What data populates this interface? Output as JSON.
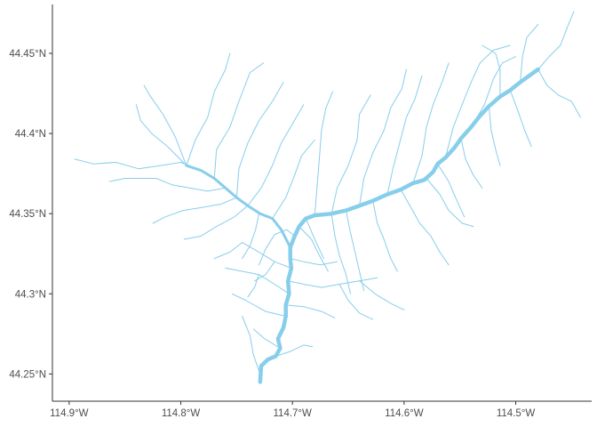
{
  "chart_data": {
    "type": "map",
    "title": "",
    "xlabel": "",
    "ylabel": "",
    "line_color": "#87CEEB",
    "xlim": [
      -114.915,
      -114.432
    ],
    "ylim": [
      44.233,
      44.4805
    ],
    "x_ticks": [
      {
        "value": -114.9,
        "label": "114.9°W"
      },
      {
        "value": -114.8,
        "label": "114.8°W"
      },
      {
        "value": -114.7,
        "label": "114.7°W"
      },
      {
        "value": -114.6,
        "label": "114.6°W"
      },
      {
        "value": -114.5,
        "label": "114.5°W"
      }
    ],
    "y_ticks": [
      {
        "value": 44.25,
        "label": "44.25°N"
      },
      {
        "value": 44.3,
        "label": "44.3°N"
      },
      {
        "value": 44.35,
        "label": "44.35°N"
      },
      {
        "value": 44.4,
        "label": "44.4°N"
      },
      {
        "value": 44.45,
        "label": "44.45°N"
      }
    ],
    "main_stem": [
      [
        -114.729,
        44.245
      ],
      [
        -114.728,
        44.255
      ],
      [
        -114.722,
        44.259
      ],
      [
        -114.715,
        44.261
      ],
      [
        -114.711,
        44.266
      ],
      [
        -114.713,
        44.272
      ],
      [
        -114.708,
        44.279
      ],
      [
        -114.706,
        44.286
      ],
      [
        -114.706,
        44.293
      ],
      [
        -114.703,
        44.3
      ],
      [
        -114.704,
        44.308
      ],
      [
        -114.701,
        44.316
      ],
      [
        -114.702,
        44.322
      ],
      [
        -114.702,
        44.329
      ],
      [
        -114.698,
        44.336
      ],
      [
        -114.694,
        44.342
      ],
      [
        -114.688,
        44.347
      ],
      [
        -114.68,
        44.349
      ],
      [
        -114.665,
        44.35
      ],
      [
        -114.652,
        44.352
      ],
      [
        -114.64,
        44.355
      ],
      [
        -114.628,
        44.358
      ],
      [
        -114.615,
        44.362
      ],
      [
        -114.603,
        44.365
      ],
      [
        -114.592,
        44.369
      ],
      [
        -114.582,
        44.371
      ],
      [
        -114.574,
        44.376
      ],
      [
        -114.57,
        44.381
      ],
      [
        -114.563,
        44.385
      ],
      [
        -114.555,
        44.391
      ],
      [
        -114.549,
        44.397
      ],
      [
        -114.54,
        44.404
      ],
      [
        -114.532,
        44.411
      ],
      [
        -114.524,
        44.417
      ],
      [
        -114.514,
        44.423
      ],
      [
        -114.505,
        44.427
      ],
      [
        -114.496,
        44.432
      ],
      [
        -114.488,
        44.436
      ],
      [
        -114.48,
        44.44
      ]
    ],
    "major_tributaries": [
      [
        [
          -114.702,
          44.329
        ],
        [
          -114.71,
          44.34
        ],
        [
          -114.718,
          44.347
        ],
        [
          -114.729,
          44.35
        ],
        [
          -114.74,
          44.355
        ],
        [
          -114.75,
          44.36
        ],
        [
          -114.76,
          44.366
        ],
        [
          -114.77,
          44.372
        ],
        [
          -114.782,
          44.377
        ],
        [
          -114.795,
          44.38
        ]
      ]
    ],
    "streams": [
      [
        [
          -114.729,
          44.25
        ],
        [
          -114.735,
          44.262
        ],
        [
          -114.738,
          44.274
        ],
        [
          -114.745,
          44.286
        ]
      ],
      [
        [
          -114.715,
          44.261
        ],
        [
          -114.702,
          44.264
        ],
        [
          -114.69,
          44.268
        ],
        [
          -114.682,
          44.267
        ]
      ],
      [
        [
          -114.711,
          44.266
        ],
        [
          -114.725,
          44.272
        ],
        [
          -114.735,
          44.278
        ]
      ],
      [
        [
          -114.706,
          44.286
        ],
        [
          -114.724,
          44.289
        ],
        [
          -114.742,
          44.296
        ],
        [
          -114.754,
          44.3
        ]
      ],
      [
        [
          -114.706,
          44.293
        ],
        [
          -114.69,
          44.292
        ],
        [
          -114.674,
          44.289
        ],
        [
          -114.662,
          44.285
        ]
      ],
      [
        [
          -114.703,
          44.3
        ],
        [
          -114.716,
          44.306
        ],
        [
          -114.73,
          44.312
        ],
        [
          -114.745,
          44.314
        ],
        [
          -114.76,
          44.316
        ]
      ],
      [
        [
          -114.704,
          44.308
        ],
        [
          -114.69,
          44.306
        ],
        [
          -114.674,
          44.304
        ],
        [
          -114.658,
          44.306
        ],
        [
          -114.64,
          44.308
        ],
        [
          -114.624,
          44.31
        ]
      ],
      [
        [
          -114.701,
          44.316
        ],
        [
          -114.716,
          44.32
        ],
        [
          -114.73,
          44.326
        ],
        [
          -114.745,
          44.332
        ]
      ],
      [
        [
          -114.702,
          44.322
        ],
        [
          -114.69,
          44.32
        ],
        [
          -114.675,
          44.318
        ],
        [
          -114.66,
          44.32
        ]
      ],
      [
        [
          -114.698,
          44.336
        ],
        [
          -114.705,
          44.34
        ],
        [
          -114.716,
          44.337
        ],
        [
          -114.724,
          44.328
        ],
        [
          -114.73,
          44.318
        ]
      ],
      [
        [
          -114.694,
          44.342
        ],
        [
          -114.683,
          44.334
        ],
        [
          -114.676,
          44.324
        ],
        [
          -114.668,
          44.314
        ]
      ],
      [
        [
          -114.73,
          44.35
        ],
        [
          -114.733,
          44.34
        ],
        [
          -114.738,
          44.33
        ],
        [
          -114.745,
          44.322
        ]
      ],
      [
        [
          -114.74,
          44.355
        ],
        [
          -114.752,
          44.348
        ],
        [
          -114.768,
          44.342
        ],
        [
          -114.782,
          44.336
        ],
        [
          -114.797,
          44.334
        ]
      ],
      [
        [
          -114.75,
          44.36
        ],
        [
          -114.764,
          44.356
        ],
        [
          -114.78,
          44.354
        ],
        [
          -114.798,
          44.352
        ],
        [
          -114.814,
          44.348
        ],
        [
          -114.825,
          44.344
        ]
      ],
      [
        [
          -114.76,
          44.366
        ],
        [
          -114.776,
          44.364
        ],
        [
          -114.792,
          44.366
        ],
        [
          -114.808,
          44.368
        ],
        [
          -114.822,
          44.372
        ],
        [
          -114.836,
          44.372
        ],
        [
          -114.85,
          44.372
        ],
        [
          -114.864,
          44.37
        ]
      ],
      [
        [
          -114.782,
          44.377
        ],
        [
          -114.8,
          44.382
        ],
        [
          -114.818,
          44.38
        ],
        [
          -114.838,
          44.378
        ],
        [
          -114.858,
          44.382
        ],
        [
          -114.878,
          44.381
        ],
        [
          -114.895,
          44.384
        ]
      ],
      [
        [
          -114.795,
          44.38
        ],
        [
          -114.812,
          44.392
        ],
        [
          -114.826,
          44.4
        ],
        [
          -114.836,
          44.408
        ],
        [
          -114.84,
          44.418
        ]
      ],
      [
        [
          -114.795,
          44.38
        ],
        [
          -114.805,
          44.398
        ],
        [
          -114.816,
          44.412
        ],
        [
          -114.828,
          44.424
        ],
        [
          -114.833,
          44.43
        ]
      ],
      [
        [
          -114.795,
          44.38
        ],
        [
          -114.787,
          44.396
        ],
        [
          -114.776,
          44.41
        ],
        [
          -114.77,
          44.426
        ],
        [
          -114.76,
          44.44
        ],
        [
          -114.756,
          44.45
        ]
      ],
      [
        [
          -114.77,
          44.372
        ],
        [
          -114.768,
          44.39
        ],
        [
          -114.756,
          44.404
        ],
        [
          -114.748,
          44.42
        ],
        [
          -114.738,
          44.438
        ],
        [
          -114.726,
          44.444
        ]
      ],
      [
        [
          -114.75,
          44.36
        ],
        [
          -114.748,
          44.378
        ],
        [
          -114.74,
          44.394
        ],
        [
          -114.73,
          44.408
        ],
        [
          -114.718,
          44.42
        ],
        [
          -114.708,
          44.432
        ]
      ],
      [
        [
          -114.74,
          44.355
        ],
        [
          -114.728,
          44.366
        ],
        [
          -114.718,
          44.38
        ],
        [
          -114.71,
          44.394
        ],
        [
          -114.7,
          44.406
        ],
        [
          -114.69,
          44.418
        ]
      ],
      [
        [
          -114.718,
          44.347
        ],
        [
          -114.706,
          44.36
        ],
        [
          -114.698,
          44.374
        ],
        [
          -114.692,
          44.386
        ],
        [
          -114.68,
          44.396
        ]
      ],
      [
        [
          -114.68,
          44.349
        ],
        [
          -114.678,
          44.366
        ],
        [
          -114.676,
          44.384
        ],
        [
          -114.674,
          44.402
        ],
        [
          -114.67,
          44.416
        ],
        [
          -114.664,
          44.426
        ]
      ],
      [
        [
          -114.665,
          44.35
        ],
        [
          -114.66,
          44.366
        ],
        [
          -114.65,
          44.38
        ],
        [
          -114.642,
          44.396
        ],
        [
          -114.64,
          44.412
        ],
        [
          -114.63,
          44.424
        ]
      ],
      [
        [
          -114.64,
          44.355
        ],
        [
          -114.636,
          44.372
        ],
        [
          -114.628,
          44.388
        ],
        [
          -114.618,
          44.402
        ],
        [
          -114.612,
          44.416
        ],
        [
          -114.602,
          44.428
        ],
        [
          -114.598,
          44.44
        ]
      ],
      [
        [
          -114.615,
          44.362
        ],
        [
          -114.61,
          44.378
        ],
        [
          -114.604,
          44.394
        ],
        [
          -114.598,
          44.41
        ],
        [
          -114.59,
          44.422
        ],
        [
          -114.584,
          44.436
        ]
      ],
      [
        [
          -114.592,
          44.369
        ],
        [
          -114.584,
          44.386
        ],
        [
          -114.58,
          44.404
        ],
        [
          -114.574,
          44.418
        ],
        [
          -114.566,
          44.432
        ],
        [
          -114.56,
          44.444
        ]
      ],
      [
        [
          -114.563,
          44.385
        ],
        [
          -114.556,
          44.404
        ],
        [
          -114.548,
          44.418
        ],
        [
          -114.54,
          44.432
        ],
        [
          -114.532,
          44.444
        ],
        [
          -114.52,
          44.452
        ],
        [
          -114.505,
          44.455
        ]
      ],
      [
        [
          -114.54,
          44.404
        ],
        [
          -114.528,
          44.418
        ],
        [
          -114.52,
          44.434
        ],
        [
          -114.512,
          44.444
        ],
        [
          -114.5,
          44.448
        ]
      ],
      [
        [
          -114.514,
          44.423
        ],
        [
          -114.514,
          44.44
        ],
        [
          -114.518,
          44.45
        ],
        [
          -114.53,
          44.455
        ]
      ],
      [
        [
          -114.496,
          44.432
        ],
        [
          -114.494,
          44.448
        ],
        [
          -114.49,
          44.46
        ],
        [
          -114.48,
          44.468
        ]
      ],
      [
        [
          -114.48,
          44.44
        ],
        [
          -114.47,
          44.448
        ],
        [
          -114.46,
          44.455
        ],
        [
          -114.454,
          44.466
        ],
        [
          -114.448,
          44.476
        ]
      ],
      [
        [
          -114.48,
          44.44
        ],
        [
          -114.472,
          44.43
        ],
        [
          -114.462,
          44.424
        ],
        [
          -114.45,
          44.42
        ],
        [
          -114.442,
          44.41
        ]
      ],
      [
        [
          -114.505,
          44.427
        ],
        [
          -114.498,
          44.414
        ],
        [
          -114.492,
          44.402
        ],
        [
          -114.486,
          44.392
        ]
      ],
      [
        [
          -114.524,
          44.417
        ],
        [
          -114.522,
          44.402
        ],
        [
          -114.518,
          44.39
        ],
        [
          -114.514,
          44.38
        ]
      ],
      [
        [
          -114.549,
          44.397
        ],
        [
          -114.545,
          44.384
        ],
        [
          -114.538,
          44.374
        ],
        [
          -114.53,
          44.366
        ]
      ],
      [
        [
          -114.57,
          44.381
        ],
        [
          -114.56,
          44.37
        ],
        [
          -114.554,
          44.36
        ],
        [
          -114.546,
          44.348
        ]
      ],
      [
        [
          -114.58,
          44.372
        ],
        [
          -114.568,
          44.362
        ],
        [
          -114.56,
          44.352
        ],
        [
          -114.548,
          44.344
        ],
        [
          -114.538,
          44.342
        ]
      ],
      [
        [
          -114.603,
          44.365
        ],
        [
          -114.594,
          44.354
        ],
        [
          -114.586,
          44.344
        ],
        [
          -114.576,
          44.336
        ],
        [
          -114.568,
          44.326
        ],
        [
          -114.56,
          44.318
        ]
      ],
      [
        [
          -114.628,
          44.358
        ],
        [
          -114.624,
          44.344
        ],
        [
          -114.618,
          44.334
        ],
        [
          -114.612,
          44.322
        ],
        [
          -114.606,
          44.314
        ]
      ],
      [
        [
          -114.652,
          44.352
        ],
        [
          -114.648,
          44.338
        ],
        [
          -114.644,
          44.326
        ],
        [
          -114.64,
          44.314
        ],
        [
          -114.636,
          44.302
        ]
      ],
      [
        [
          -114.688,
          44.347
        ],
        [
          -114.68,
          44.334
        ],
        [
          -114.672,
          44.322
        ]
      ],
      [
        [
          -114.665,
          44.35
        ],
        [
          -114.662,
          44.336
        ],
        [
          -114.658,
          44.324
        ],
        [
          -114.652,
          44.312
        ],
        [
          -114.648,
          44.3
        ]
      ],
      [
        [
          -114.64,
          44.308
        ],
        [
          -114.626,
          44.3
        ],
        [
          -114.612,
          44.294
        ],
        [
          -114.6,
          44.29
        ]
      ],
      [
        [
          -114.658,
          44.306
        ],
        [
          -114.65,
          44.296
        ],
        [
          -114.64,
          44.288
        ],
        [
          -114.628,
          44.284
        ]
      ],
      [
        [
          -114.73,
          44.312
        ],
        [
          -114.734,
          44.304
        ],
        [
          -114.74,
          44.298
        ]
      ],
      [
        [
          -114.745,
          44.332
        ],
        [
          -114.756,
          44.326
        ],
        [
          -114.77,
          44.322
        ]
      ],
      [
        [
          -114.716,
          44.32
        ],
        [
          -114.724,
          44.312
        ],
        [
          -114.734,
          44.308
        ]
      ]
    ]
  }
}
